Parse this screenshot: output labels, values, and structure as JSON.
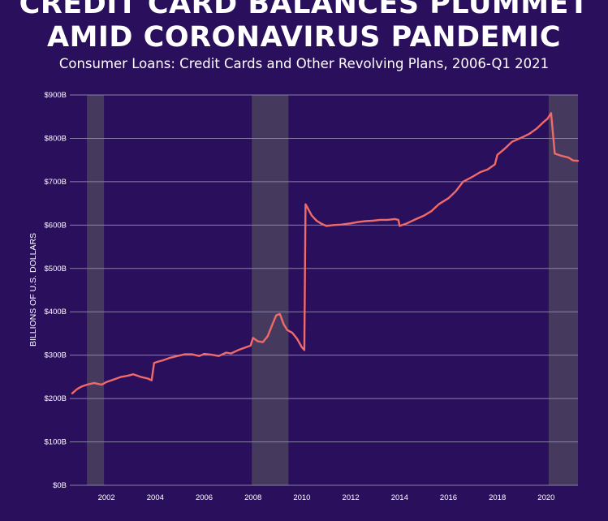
{
  "header": {
    "title_line1": "CREDIT CARD BALANCES PLUMMET",
    "title_line2": "AMID CORONAVIRUS PANDEMIC",
    "subtitle": "Consumer Loans: Credit Cards and Other Revolving Plans, 2006-Q1 2021"
  },
  "colors": {
    "background": "#2a0f5c",
    "recession_band": "#453a5e",
    "gridline": "#8a82a8",
    "series_line": "#f06a6a",
    "text": "#ffffff"
  },
  "chart_data": {
    "type": "line",
    "title": "CREDIT CARD BALANCES PLUMMET AMID CORONAVIRUS PANDEMIC",
    "subtitle": "Consumer Loans: Credit Cards and Other Revolving Plans, 2006-Q1 2021",
    "ylabel": "BILLIONS OF U.S. DOLLARS",
    "xlabel": "",
    "xlim": [
      2000.5,
      2021.3
    ],
    "ylim": [
      0,
      900
    ],
    "grid": true,
    "legend": "none",
    "y_ticks": [
      {
        "value": 0,
        "label": "$0B"
      },
      {
        "value": 100,
        "label": "$100B"
      },
      {
        "value": 200,
        "label": "$200B"
      },
      {
        "value": 300,
        "label": "$300B"
      },
      {
        "value": 400,
        "label": "$400B"
      },
      {
        "value": 500,
        "label": "$500B"
      },
      {
        "value": 600,
        "label": "$600B"
      },
      {
        "value": 700,
        "label": "$700B"
      },
      {
        "value": 800,
        "label": "$800B"
      },
      {
        "value": 900,
        "label": "$900B"
      }
    ],
    "x_ticks": [
      {
        "value": 2002,
        "label": "2002"
      },
      {
        "value": 2004,
        "label": "2004"
      },
      {
        "value": 2006,
        "label": "2006"
      },
      {
        "value": 2008,
        "label": "2008"
      },
      {
        "value": 2010,
        "label": "2010"
      },
      {
        "value": 2012,
        "label": "2012"
      },
      {
        "value": 2014,
        "label": "2014"
      },
      {
        "value": 2016,
        "label": "2016"
      },
      {
        "value": 2018,
        "label": "2018"
      },
      {
        "value": 2020,
        "label": "2020"
      }
    ],
    "recession_bands": [
      {
        "start": 2001.2,
        "end": 2001.9
      },
      {
        "start": 2007.95,
        "end": 2009.45
      },
      {
        "start": 2020.1,
        "end": 2021.3
      }
    ],
    "series": [
      {
        "x": [
          2000.6,
          2000.8,
          2001.0,
          2001.2,
          2001.5,
          2001.8,
          2002.0,
          2002.3,
          2002.6,
          2002.9,
          2003.1,
          2003.4,
          2003.7,
          2003.85,
          2003.95,
          2004.1,
          2004.3,
          2004.6,
          2004.9,
          2005.2,
          2005.5,
          2005.8,
          2006.0,
          2006.3,
          2006.6,
          2006.9,
          2007.1,
          2007.4,
          2007.7,
          2007.9,
          2008.0,
          2008.2,
          2008.4,
          2008.6,
          2008.8,
          2008.95,
          2009.1,
          2009.25,
          2009.4,
          2009.6,
          2009.8,
          2010.0,
          2010.1,
          2010.15,
          2010.25,
          2010.4,
          2010.6,
          2010.8,
          2011.0,
          2011.3,
          2011.6,
          2012.0,
          2012.3,
          2012.6,
          2012.9,
          2013.2,
          2013.5,
          2013.8,
          2013.95,
          2014.0,
          2014.3,
          2014.6,
          2015.0,
          2015.3,
          2015.6,
          2016.0,
          2016.3,
          2016.6,
          2017.0,
          2017.3,
          2017.6,
          2017.9,
          2018.0,
          2018.3,
          2018.6,
          2019.0,
          2019.3,
          2019.6,
          2019.9,
          2020.05,
          2020.2,
          2020.35,
          2020.6,
          2020.9,
          2021.1,
          2021.3
        ],
        "values": [
          212,
          222,
          228,
          232,
          236,
          232,
          238,
          244,
          250,
          253,
          256,
          250,
          246,
          242,
          282,
          285,
          288,
          294,
          298,
          302,
          302,
          298,
          303,
          301,
          298,
          306,
          304,
          312,
          318,
          322,
          340,
          332,
          330,
          344,
          372,
          392,
          395,
          372,
          358,
          352,
          338,
          318,
          312,
          648,
          638,
          622,
          610,
          603,
          598,
          600,
          601,
          604,
          607,
          609,
          610,
          612,
          612,
          614,
          612,
          598,
          604,
          612,
          622,
          632,
          648,
          662,
          678,
          700,
          712,
          722,
          728,
          740,
          762,
          776,
          792,
          802,
          810,
          822,
          838,
          845,
          858,
          765,
          760,
          756,
          749,
          748
        ]
      }
    ]
  }
}
